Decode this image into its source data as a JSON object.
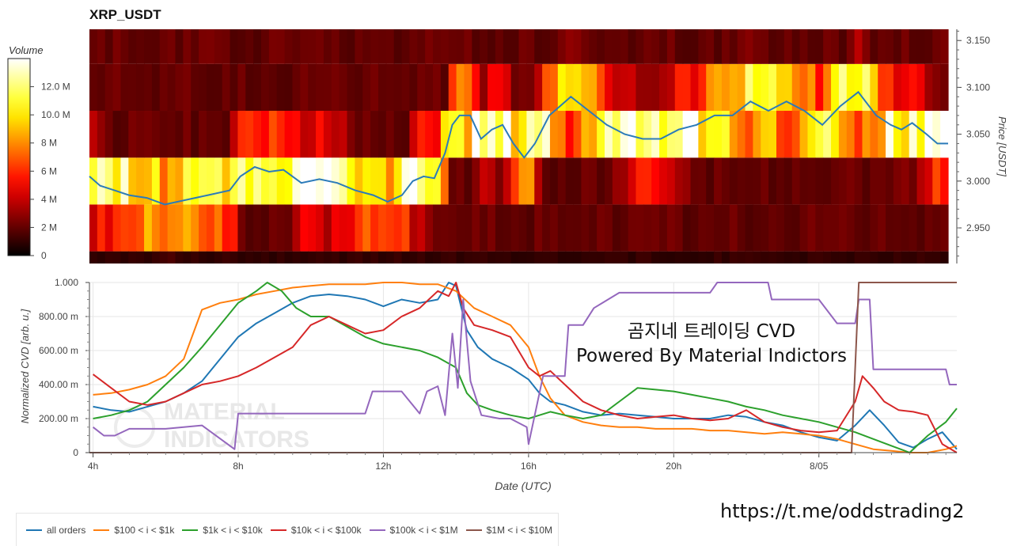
{
  "title": "XRP_USDT",
  "overlay": {
    "line1": "곰지네 트레이딩 CVD",
    "line2": "Powered By Material Indictors"
  },
  "watermark": [
    "MATERIAL",
    "INDICATORS"
  ],
  "link_text": "https://t.me/oddstrading2",
  "chart_data": [
    {
      "type": "heatmap",
      "title": "XRP_USDT",
      "colorbar": {
        "label": "Volume",
        "ticks": [
          "0",
          "2 M",
          "4 M",
          "6 M",
          "8 M",
          "10.0 M",
          "12.0 M"
        ],
        "tick_values": [
          0,
          2,
          4,
          6,
          8,
          10,
          12
        ],
        "range": [
          0,
          14
        ]
      },
      "y_axis": {
        "label": "Price [USDT]",
        "position": "right",
        "ticks": [
          "2.950",
          "3.000",
          "3.050",
          "3.100",
          "3.150"
        ],
        "tick_values": [
          2.95,
          3.0,
          3.05,
          3.1,
          3.15
        ],
        "range": [
          2.912,
          3.162
        ]
      },
      "x_range_hours": [
        3.9,
        27.8
      ],
      "price_bins": [
        {
          "low": 2.912,
          "high": 2.925,
          "level": 0.05
        },
        {
          "low": 2.925,
          "high": 2.975,
          "level": 0.12
        },
        {
          "low": 2.975,
          "high": 3.025,
          "level": 0.6
        },
        {
          "low": 3.025,
          "high": 3.075,
          "level": 0.45
        },
        {
          "low": 3.075,
          "high": 3.125,
          "level": 0.3
        },
        {
          "low": 3.125,
          "high": 3.162,
          "level": 0.2
        }
      ],
      "price_series": {
        "name": "price",
        "x": [
          3.9,
          4.2,
          4.6,
          5.0,
          5.5,
          6.0,
          6.6,
          7.2,
          7.8,
          8.1,
          8.5,
          8.9,
          9.3,
          9.8,
          10.3,
          10.8,
          11.3,
          11.8,
          12.2,
          12.6,
          12.9,
          13.2,
          13.5,
          13.8,
          14.0,
          14.2,
          14.5,
          14.8,
          15.1,
          15.4,
          15.7,
          16.0,
          16.3,
          16.7,
          17.0,
          17.3,
          17.8,
          18.3,
          18.8,
          19.3,
          19.8,
          20.3,
          20.8,
          21.3,
          21.8,
          22.3,
          22.8,
          23.3,
          23.8,
          24.3,
          24.8,
          25.3,
          25.8,
          26.2,
          26.5,
          26.8,
          27.2,
          27.5,
          27.8
        ],
        "y": [
          3.005,
          2.995,
          2.99,
          2.985,
          2.982,
          2.975,
          2.98,
          2.985,
          2.99,
          3.005,
          3.015,
          3.01,
          3.012,
          2.998,
          3.002,
          2.998,
          2.99,
          2.985,
          2.978,
          2.985,
          3.0,
          3.005,
          3.003,
          3.03,
          3.06,
          3.07,
          3.07,
          3.045,
          3.055,
          3.06,
          3.04,
          3.025,
          3.04,
          3.07,
          3.08,
          3.09,
          3.075,
          3.06,
          3.05,
          3.045,
          3.045,
          3.055,
          3.06,
          3.07,
          3.07,
          3.085,
          3.075,
          3.085,
          3.075,
          3.06,
          3.08,
          3.095,
          3.07,
          3.06,
          3.055,
          3.062,
          3.05,
          3.04,
          3.04
        ]
      }
    },
    {
      "type": "line",
      "xlabel": "Date (UTC)",
      "ylabel": "Normalized CVD [arb. u.]",
      "x_ticks": [
        {
          "label": "4h",
          "value": 4
        },
        {
          "label": "8h",
          "value": 8
        },
        {
          "label": "12h",
          "value": 12
        },
        {
          "label": "16h",
          "value": 16
        },
        {
          "label": "20h",
          "value": 20
        },
        {
          "label": "8/05",
          "value": 24
        }
      ],
      "y_ticks": [
        "0",
        "200.00 m",
        "400.00 m",
        "600.00 m",
        "800.00 m",
        "1.000"
      ],
      "y_tick_values": [
        0,
        0.2,
        0.4,
        0.6,
        0.8,
        1.0
      ],
      "xlim": [
        3.9,
        27.8
      ],
      "ylim": [
        0,
        1.0
      ],
      "grid": true,
      "legend_position": "bottom-left",
      "series": [
        {
          "name": "all orders",
          "color": "#1f77b4",
          "x": [
            4,
            4.5,
            5,
            5.5,
            6,
            6.5,
            7,
            7.5,
            8,
            8.5,
            9,
            9.5,
            10,
            10.5,
            11,
            11.5,
            12,
            12.5,
            13,
            13.5,
            13.8,
            14,
            14.3,
            14.6,
            15,
            15.5,
            16,
            16.3,
            16.6,
            17,
            17.5,
            18,
            18.5,
            19,
            19.5,
            20,
            20.5,
            21,
            21.5,
            22,
            22.5,
            23,
            23.5,
            24,
            24.5,
            25,
            25.4,
            25.8,
            26.2,
            26.6,
            27,
            27.4,
            27.8
          ],
          "y": [
            0.27,
            0.25,
            0.24,
            0.27,
            0.3,
            0.35,
            0.42,
            0.55,
            0.68,
            0.76,
            0.82,
            0.88,
            0.92,
            0.93,
            0.92,
            0.9,
            0.86,
            0.9,
            0.88,
            0.9,
            1.0,
            0.98,
            0.72,
            0.62,
            0.55,
            0.5,
            0.43,
            0.35,
            0.3,
            0.28,
            0.24,
            0.22,
            0.23,
            0.22,
            0.21,
            0.2,
            0.2,
            0.2,
            0.22,
            0.21,
            0.18,
            0.16,
            0.12,
            0.09,
            0.07,
            0.16,
            0.25,
            0.16,
            0.06,
            0.03,
            0.08,
            0.12,
            0.02
          ]
        },
        {
          "name": "$100 < i < $1k",
          "color": "#ff7f0e",
          "x": [
            4,
            4.5,
            5,
            5.5,
            6,
            6.5,
            7,
            7.5,
            8,
            8.5,
            9,
            9.5,
            10,
            10.5,
            11,
            11.5,
            12,
            12.5,
            13,
            13.5,
            14,
            14.5,
            15,
            15.5,
            16,
            16.3,
            16.6,
            17,
            17.5,
            18,
            18.5,
            19,
            19.5,
            20,
            20.5,
            21,
            21.5,
            22,
            22.5,
            23,
            23.5,
            24,
            24.5,
            25,
            25.5,
            26,
            26.5,
            27,
            27.5,
            27.8
          ],
          "y": [
            0.34,
            0.35,
            0.37,
            0.4,
            0.45,
            0.55,
            0.84,
            0.88,
            0.9,
            0.93,
            0.95,
            0.97,
            0.98,
            0.99,
            0.99,
            0.99,
            1.0,
            1.0,
            0.99,
            0.99,
            0.95,
            0.85,
            0.8,
            0.75,
            0.62,
            0.45,
            0.32,
            0.22,
            0.18,
            0.16,
            0.15,
            0.15,
            0.14,
            0.14,
            0.14,
            0.13,
            0.13,
            0.12,
            0.11,
            0.12,
            0.11,
            0.1,
            0.08,
            0.05,
            0.02,
            0.01,
            0.0,
            0.0,
            0.02,
            0.04
          ]
        },
        {
          "name": "$1k < i < $10k",
          "color": "#2ca02c",
          "x": [
            4,
            4.5,
            5,
            5.5,
            6,
            6.5,
            7,
            7.5,
            8,
            8.5,
            8.8,
            9.2,
            9.6,
            10,
            10.5,
            11,
            11.5,
            12,
            12.5,
            13,
            13.5,
            14,
            14.3,
            14.6,
            15,
            15.5,
            16,
            16.3,
            16.6,
            17,
            17.5,
            18,
            18.5,
            19,
            19.5,
            20,
            20.5,
            21,
            21.5,
            22,
            22.5,
            23,
            23.5,
            24,
            24.5,
            25,
            25.5,
            26,
            26.5,
            27,
            27.5,
            27.8
          ],
          "y": [
            0.2,
            0.22,
            0.25,
            0.3,
            0.4,
            0.5,
            0.62,
            0.75,
            0.88,
            0.95,
            1.0,
            0.95,
            0.85,
            0.8,
            0.8,
            0.74,
            0.68,
            0.64,
            0.62,
            0.6,
            0.56,
            0.5,
            0.35,
            0.28,
            0.25,
            0.22,
            0.2,
            0.22,
            0.24,
            0.22,
            0.2,
            0.22,
            0.3,
            0.38,
            0.37,
            0.36,
            0.34,
            0.32,
            0.3,
            0.27,
            0.25,
            0.22,
            0.2,
            0.18,
            0.15,
            0.12,
            0.08,
            0.04,
            0.0,
            0.1,
            0.18,
            0.26
          ]
        },
        {
          "name": "$10k < i < $100k",
          "color": "#d62728",
          "x": [
            4,
            4.5,
            5,
            5.5,
            6,
            6.5,
            7,
            7.5,
            8,
            8.5,
            9,
            9.5,
            10,
            10.5,
            11,
            11.5,
            12,
            12.5,
            13,
            13.5,
            13.8,
            14,
            14.2,
            14.5,
            15,
            15.5,
            16,
            16.3,
            16.6,
            17,
            17.5,
            18,
            18.5,
            19,
            19.5,
            20,
            20.5,
            21,
            21.5,
            22,
            22.5,
            23,
            23.5,
            24,
            24.5,
            25,
            25.2,
            25.5,
            25.8,
            26.2,
            26.6,
            27,
            27.4,
            27.8
          ],
          "y": [
            0.46,
            0.38,
            0.3,
            0.28,
            0.3,
            0.35,
            0.4,
            0.42,
            0.45,
            0.5,
            0.56,
            0.62,
            0.75,
            0.8,
            0.75,
            0.7,
            0.72,
            0.8,
            0.85,
            0.95,
            0.92,
            1.0,
            0.85,
            0.75,
            0.72,
            0.68,
            0.5,
            0.45,
            0.48,
            0.4,
            0.3,
            0.25,
            0.22,
            0.2,
            0.21,
            0.22,
            0.2,
            0.19,
            0.2,
            0.25,
            0.18,
            0.15,
            0.13,
            0.12,
            0.13,
            0.3,
            0.45,
            0.38,
            0.3,
            0.25,
            0.24,
            0.22,
            0.05,
            0.0
          ]
        },
        {
          "name": "$100k < i < $1M",
          "color": "#9467bd",
          "x": [
            4,
            4.3,
            4.6,
            5.0,
            6.0,
            7.0,
            7.9,
            8.0,
            11.5,
            11.7,
            12.5,
            13.0,
            13.2,
            13.5,
            13.7,
            13.9,
            14.05,
            14.2,
            14.4,
            14.7,
            15.2,
            15.5,
            15.95,
            16.0,
            16.4,
            17.0,
            17.1,
            17.5,
            17.8,
            18.5,
            21.0,
            21.2,
            22.6,
            22.7,
            24.0,
            24.5,
            25.0,
            25.1,
            25.4,
            25.5,
            27.5,
            27.6,
            27.8
          ],
          "y": [
            0.15,
            0.1,
            0.1,
            0.14,
            0.14,
            0.16,
            0.02,
            0.23,
            0.23,
            0.36,
            0.36,
            0.23,
            0.36,
            0.39,
            0.22,
            0.7,
            0.38,
            0.9,
            0.42,
            0.22,
            0.2,
            0.2,
            0.15,
            0.05,
            0.45,
            0.45,
            0.75,
            0.75,
            0.85,
            0.94,
            0.94,
            1.0,
            1.0,
            0.9,
            0.9,
            0.76,
            0.76,
            0.9,
            0.9,
            0.49,
            0.49,
            0.4,
            0.4
          ]
        },
        {
          "name": "$1M < i < $10M",
          "color": "#8c564b",
          "x": [
            3.9,
            24.9,
            25.1,
            27.8
          ],
          "y": [
            0.0,
            0.0,
            1.0,
            1.0
          ]
        }
      ]
    }
  ]
}
